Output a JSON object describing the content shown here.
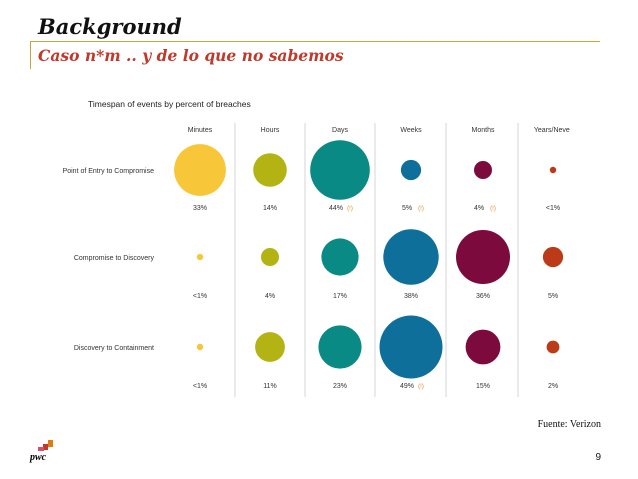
{
  "slide": {
    "title": "Background",
    "subtitle": "Caso n*m .. y de lo que no sabemos",
    "source": "Fuente: Verizon",
    "page_number": "9",
    "logo_text": "pwc"
  },
  "colors": {
    "accent_rule": "#c9a43c",
    "subtitle": "#c0392b",
    "Minutes": "#f7c739",
    "Hours": "#b3b414",
    "Days": "#0a8a84",
    "Weeks": "#0e6f9a",
    "Months": "#7d0a3c",
    "Years/Never": "#bc3a17",
    "logo_orange": "#e07b10",
    "logo_red": "#c0392b",
    "logo_rose": "#d4506a"
  },
  "chart_data": {
    "type": "bubble_grid",
    "title": "Timespan of events by percent of breaches",
    "columns": [
      "Minutes",
      "Hours",
      "Days",
      "Weeks",
      "Months",
      "Years/Never"
    ],
    "rows": [
      {
        "name": "Point of Entry to Compromise",
        "values": [
          33,
          14,
          44,
          5,
          4,
          0.5
        ],
        "labels": [
          "33%",
          "14%",
          "44%",
          "5%",
          "4%",
          "<1%"
        ],
        "flagged": [
          false,
          false,
          true,
          true,
          true,
          false
        ]
      },
      {
        "name": "Compromise to Discovery",
        "values": [
          0.5,
          4,
          17,
          38,
          36,
          5
        ],
        "labels": [
          "<1%",
          "4%",
          "17%",
          "38%",
          "36%",
          "5%"
        ],
        "flagged": [
          false,
          false,
          false,
          false,
          false,
          false
        ]
      },
      {
        "name": "Discovery to Containment",
        "values": [
          0.5,
          11,
          23,
          49,
          15,
          2
        ],
        "labels": [
          "<1%",
          "11%",
          "23%",
          "49%",
          "15%",
          "2%"
        ],
        "flagged": [
          false,
          false,
          false,
          true,
          false,
          false
        ]
      }
    ],
    "flag_marker": "(!)"
  }
}
